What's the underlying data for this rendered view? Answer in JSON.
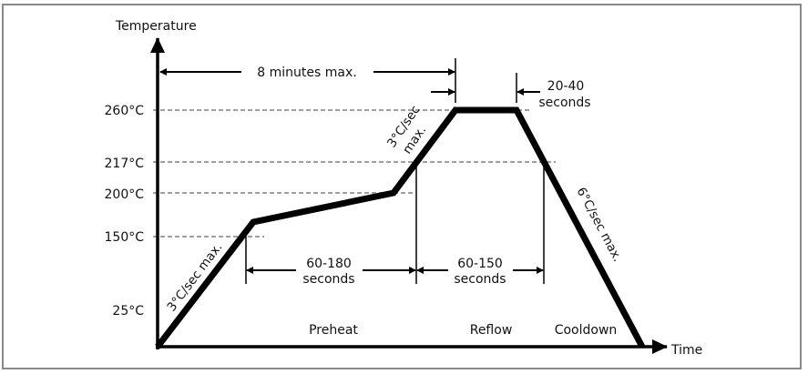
{
  "axes": {
    "y_label": "Temperature",
    "x_label": "Time"
  },
  "temperature_ticks": [
    "260°C",
    "217°C",
    "200°C",
    "150°C",
    "25°C"
  ],
  "annotations": {
    "total_time": "8 minutes max.",
    "peak_time_line1": "20-40",
    "peak_time_line2": "seconds",
    "preheat_time_line1": "60-180",
    "preheat_time_line2": "seconds",
    "reflow_time_line1": "60-150",
    "reflow_time_line2": "seconds",
    "ramp_up_rate": "3°C/sec max.",
    "reflow_ramp_line1": "3°C/sec",
    "reflow_ramp_line2": "max.",
    "cooldown_rate": "6°C/sec max."
  },
  "zones": [
    "Preheat",
    "Reflow",
    "Cooldown"
  ],
  "colors": {
    "profile": "#000000",
    "guides": "#a0a0a0",
    "frame": "#8a8a8a"
  }
}
